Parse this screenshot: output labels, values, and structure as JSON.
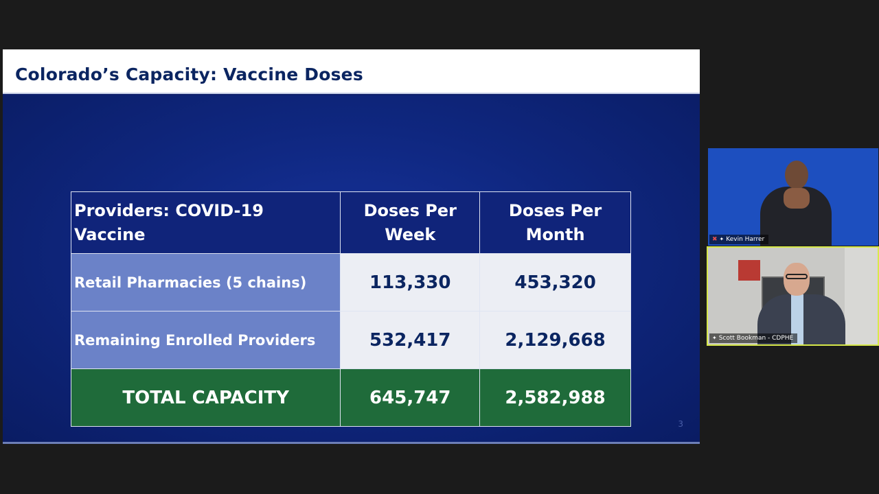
{
  "slide": {
    "title": "Colorado’s Capacity: Vaccine Doses",
    "page_number": "3",
    "table": {
      "headers": [
        "Providers: COVID-19 Vaccine",
        "Doses Per\nWeek",
        "Doses Per\nMonth"
      ],
      "header_week": [
        "Doses Per",
        "Week"
      ],
      "header_month": [
        "Doses Per",
        "Month"
      ],
      "rows": [
        {
          "provider": "Retail Pharmacies (5 chains)",
          "week": "113,330",
          "month": "453,320"
        },
        {
          "provider": "Remaining Enrolled Providers",
          "week": "532,417",
          "month": "2,129,668"
        }
      ],
      "total": {
        "label": "TOTAL CAPACITY",
        "week": "645,747",
        "month": "2,582,988"
      }
    }
  },
  "participants": [
    {
      "name": "Kevin Harrer",
      "muted": true,
      "pinned": true
    },
    {
      "name": "Scott Bookman - CDPHE",
      "muted": false,
      "pinned": true
    }
  ],
  "colors": {
    "slide_blue": "#0f2780",
    "header_blue": "#10247a",
    "row_label_blue": "#6b82c8",
    "total_green": "#1f6b3a",
    "active_speaker_border": "#d7e84a"
  }
}
